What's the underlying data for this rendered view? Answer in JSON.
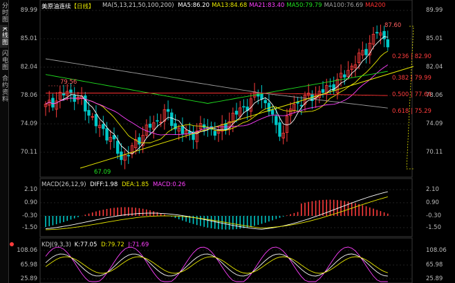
{
  "sidebar": {
    "tabs": [
      "分时图",
      "K线图",
      "闪电图",
      "合约资料"
    ]
  },
  "header": {
    "title": "美原油连续",
    "period": "日线",
    "ma_label": "MA(5,13,21,50,100,200)",
    "ma_values": [
      {
        "text": "MA5:86.20",
        "color": "#ffffff"
      },
      {
        "text": "MA13:84.68",
        "color": "#e8e800"
      },
      {
        "text": "MA21:83.40",
        "color": "#ff40ff"
      },
      {
        "text": "MA50:79.79",
        "color": "#20e020"
      },
      {
        "text": "MA100:76.69",
        "color": "#a0a0a0"
      },
      {
        "text": "MA200",
        "color": "#ff3030"
      }
    ]
  },
  "price_axis": {
    "left": [
      "89.99",
      "85.01",
      "82.04",
      "78.06",
      "74.09",
      "70.11"
    ],
    "right": [
      "89.99",
      "85.01",
      "82.04",
      "78.06",
      "74.09",
      "70.11"
    ]
  },
  "annotations": {
    "high": "87.60",
    "peak": "79.56",
    "low": "67.09"
  },
  "fib_levels": [
    "0.236 | 82.90",
    "0.382 | 79.99",
    "0.500 | 77.64",
    "0.618 | 75.29"
  ],
  "macd": {
    "label": "MACD(26,12,9)",
    "diff": "DIFF:1.98",
    "dea": "DEA:1.85",
    "macd": "MACD:0.26",
    "axis": [
      "2.10",
      "0.90",
      "-0.30",
      "-1.50"
    ]
  },
  "kdj": {
    "label": "KDJ(9,3,3)",
    "k": "K:77.05",
    "d": "D:79.72",
    "j": "J:71.69",
    "axis": [
      "108.06",
      "65.98",
      "25.89"
    ]
  },
  "colors": {
    "up": "#ff3c3c",
    "down": "#00c8c8",
    "ma5": "#ffffff",
    "ma13": "#e8e800",
    "ma21": "#ff40ff",
    "ma50": "#20e020",
    "ma100": "#a0a0a0",
    "ma200": "#ff3030"
  }
}
